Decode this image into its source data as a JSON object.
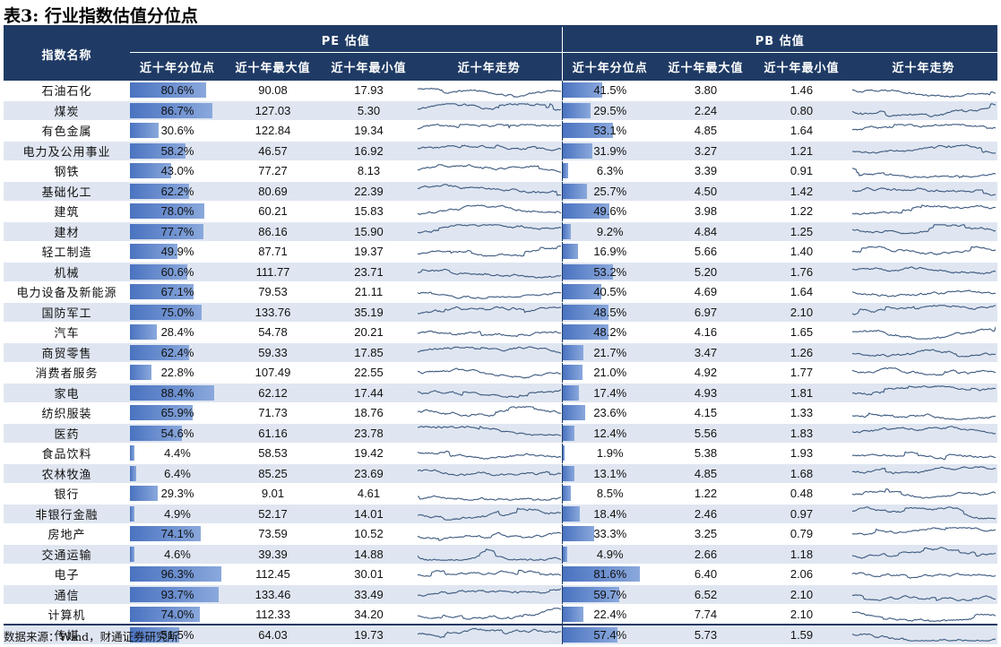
{
  "title": "表3: 行业指数估值分位点",
  "headers": {
    "name": "指数名称",
    "pe_group": "PE 估值",
    "pb_group": "PB 估值",
    "pct": "近十年分位点",
    "max": "近十年最大值",
    "min": "近十年最小值",
    "trend": "近十年走势"
  },
  "rows": [
    {
      "name": "石油石化",
      "pe_pct": "80.6%",
      "pe_pct_value": 80.6,
      "pe_max": "90.08",
      "pe_min": "17.93",
      "pb_pct": "41.5%",
      "pb_pct_value": 41.5,
      "pb_max": "3.80",
      "pb_min": "1.46"
    },
    {
      "name": "煤炭",
      "pe_pct": "86.7%",
      "pe_pct_value": 86.7,
      "pe_max": "127.03",
      "pe_min": "5.30",
      "pb_pct": "29.5%",
      "pb_pct_value": 29.5,
      "pb_max": "2.24",
      "pb_min": "0.80"
    },
    {
      "name": "有色金属",
      "pe_pct": "30.6%",
      "pe_pct_value": 30.6,
      "pe_max": "122.84",
      "pe_min": "19.34",
      "pb_pct": "53.1%",
      "pb_pct_value": 53.1,
      "pb_max": "4.85",
      "pb_min": "1.64"
    },
    {
      "name": "电力及公用事业",
      "pe_pct": "58.2%",
      "pe_pct_value": 58.2,
      "pe_max": "46.57",
      "pe_min": "16.92",
      "pb_pct": "31.9%",
      "pb_pct_value": 31.9,
      "pb_max": "3.27",
      "pb_min": "1.21"
    },
    {
      "name": "钢铁",
      "pe_pct": "43.0%",
      "pe_pct_value": 43.0,
      "pe_max": "77.27",
      "pe_min": "8.13",
      "pb_pct": "6.3%",
      "pb_pct_value": 6.3,
      "pb_max": "3.39",
      "pb_min": "0.91"
    },
    {
      "name": "基础化工",
      "pe_pct": "62.2%",
      "pe_pct_value": 62.2,
      "pe_max": "80.69",
      "pe_min": "22.39",
      "pb_pct": "25.7%",
      "pb_pct_value": 25.7,
      "pb_max": "4.50",
      "pb_min": "1.42"
    },
    {
      "name": "建筑",
      "pe_pct": "78.0%",
      "pe_pct_value": 78.0,
      "pe_max": "60.21",
      "pe_min": "15.83",
      "pb_pct": "49.6%",
      "pb_pct_value": 49.6,
      "pb_max": "3.98",
      "pb_min": "1.22"
    },
    {
      "name": "建材",
      "pe_pct": "77.7%",
      "pe_pct_value": 77.7,
      "pe_max": "86.16",
      "pe_min": "15.90",
      "pb_pct": "9.2%",
      "pb_pct_value": 9.2,
      "pb_max": "4.84",
      "pb_min": "1.25"
    },
    {
      "name": "轻工制造",
      "pe_pct": "49.9%",
      "pe_pct_value": 49.9,
      "pe_max": "87.71",
      "pe_min": "19.37",
      "pb_pct": "16.9%",
      "pb_pct_value": 16.9,
      "pb_max": "5.66",
      "pb_min": "1.40"
    },
    {
      "name": "机械",
      "pe_pct": "60.6%",
      "pe_pct_value": 60.6,
      "pe_max": "111.77",
      "pe_min": "23.71",
      "pb_pct": "53.2%",
      "pb_pct_value": 53.2,
      "pb_max": "5.20",
      "pb_min": "1.76"
    },
    {
      "name": "电力设备及新能源",
      "pe_pct": "67.1%",
      "pe_pct_value": 67.1,
      "pe_max": "79.53",
      "pe_min": "21.11",
      "pb_pct": "40.5%",
      "pb_pct_value": 40.5,
      "pb_max": "4.69",
      "pb_min": "1.64"
    },
    {
      "name": "国防军工",
      "pe_pct": "75.0%",
      "pe_pct_value": 75.0,
      "pe_max": "133.76",
      "pe_min": "35.19",
      "pb_pct": "48.5%",
      "pb_pct_value": 48.5,
      "pb_max": "6.97",
      "pb_min": "2.10"
    },
    {
      "name": "汽车",
      "pe_pct": "28.4%",
      "pe_pct_value": 28.4,
      "pe_max": "54.78",
      "pe_min": "20.21",
      "pb_pct": "48.2%",
      "pb_pct_value": 48.2,
      "pb_max": "4.16",
      "pb_min": "1.65"
    },
    {
      "name": "商贸零售",
      "pe_pct": "62.4%",
      "pe_pct_value": 62.4,
      "pe_max": "59.33",
      "pe_min": "17.85",
      "pb_pct": "21.7%",
      "pb_pct_value": 21.7,
      "pb_max": "3.47",
      "pb_min": "1.26"
    },
    {
      "name": "消费者服务",
      "pe_pct": "22.8%",
      "pe_pct_value": 22.8,
      "pe_max": "107.49",
      "pe_min": "22.55",
      "pb_pct": "21.0%",
      "pb_pct_value": 21.0,
      "pb_max": "4.92",
      "pb_min": "1.77"
    },
    {
      "name": "家电",
      "pe_pct": "88.4%",
      "pe_pct_value": 88.4,
      "pe_max": "62.12",
      "pe_min": "17.44",
      "pb_pct": "17.4%",
      "pb_pct_value": 17.4,
      "pb_max": "4.93",
      "pb_min": "1.81"
    },
    {
      "name": "纺织服装",
      "pe_pct": "65.9%",
      "pe_pct_value": 65.9,
      "pe_max": "71.73",
      "pe_min": "18.76",
      "pb_pct": "23.6%",
      "pb_pct_value": 23.6,
      "pb_max": "4.15",
      "pb_min": "1.33"
    },
    {
      "name": "医药",
      "pe_pct": "54.6%",
      "pe_pct_value": 54.6,
      "pe_max": "61.16",
      "pe_min": "23.78",
      "pb_pct": "12.4%",
      "pb_pct_value": 12.4,
      "pb_max": "5.56",
      "pb_min": "1.83"
    },
    {
      "name": "食品饮料",
      "pe_pct": "4.4%",
      "pe_pct_value": 4.4,
      "pe_max": "58.53",
      "pe_min": "19.42",
      "pb_pct": "1.9%",
      "pb_pct_value": 1.9,
      "pb_max": "5.38",
      "pb_min": "1.93"
    },
    {
      "name": "农林牧渔",
      "pe_pct": "6.4%",
      "pe_pct_value": 6.4,
      "pe_max": "85.25",
      "pe_min": "23.69",
      "pb_pct": "13.1%",
      "pb_pct_value": 13.1,
      "pb_max": "4.85",
      "pb_min": "1.68"
    },
    {
      "name": "银行",
      "pe_pct": "29.3%",
      "pe_pct_value": 29.3,
      "pe_max": "9.01",
      "pe_min": "4.61",
      "pb_pct": "8.5%",
      "pb_pct_value": 8.5,
      "pb_max": "1.22",
      "pb_min": "0.48"
    },
    {
      "name": "非银行金融",
      "pe_pct": "4.9%",
      "pe_pct_value": 4.9,
      "pe_max": "52.17",
      "pe_min": "14.01",
      "pb_pct": "18.4%",
      "pb_pct_value": 18.4,
      "pb_max": "2.46",
      "pb_min": "0.97"
    },
    {
      "name": "房地产",
      "pe_pct": "74.1%",
      "pe_pct_value": 74.1,
      "pe_max": "73.59",
      "pe_min": "10.52",
      "pb_pct": "33.3%",
      "pb_pct_value": 33.3,
      "pb_max": "3.25",
      "pb_min": "0.79"
    },
    {
      "name": "交通运输",
      "pe_pct": "4.6%",
      "pe_pct_value": 4.6,
      "pe_max": "39.39",
      "pe_min": "14.88",
      "pb_pct": "4.9%",
      "pb_pct_value": 4.9,
      "pb_max": "2.66",
      "pb_min": "1.18"
    },
    {
      "name": "电子",
      "pe_pct": "96.3%",
      "pe_pct_value": 96.3,
      "pe_max": "112.45",
      "pe_min": "30.01",
      "pb_pct": "81.6%",
      "pb_pct_value": 81.6,
      "pb_max": "6.40",
      "pb_min": "2.06"
    },
    {
      "name": "通信",
      "pe_pct": "93.7%",
      "pe_pct_value": 93.7,
      "pe_max": "133.46",
      "pe_min": "33.49",
      "pb_pct": "59.7%",
      "pb_pct_value": 59.7,
      "pb_max": "6.52",
      "pb_min": "2.10"
    },
    {
      "name": "计算机",
      "pe_pct": "74.0%",
      "pe_pct_value": 74.0,
      "pe_max": "112.33",
      "pe_min": "34.20",
      "pb_pct": "22.4%",
      "pb_pct_value": 22.4,
      "pb_max": "7.74",
      "pb_min": "2.10"
    },
    {
      "name": "传媒",
      "pe_pct": "51.5%",
      "pe_pct_value": 51.5,
      "pe_max": "64.03",
      "pe_min": "19.73",
      "pb_pct": "57.4%",
      "pb_pct_value": 57.4,
      "pb_max": "5.73",
      "pb_min": "1.59"
    }
  ],
  "source": "数据来源：Wind，财通证券研究所",
  "colors": {
    "header_bg": "#1f3b65",
    "stripe_bg": "#dfe6f1",
    "bar": "#5b84c8",
    "sparkline": "#3d5a80"
  }
}
